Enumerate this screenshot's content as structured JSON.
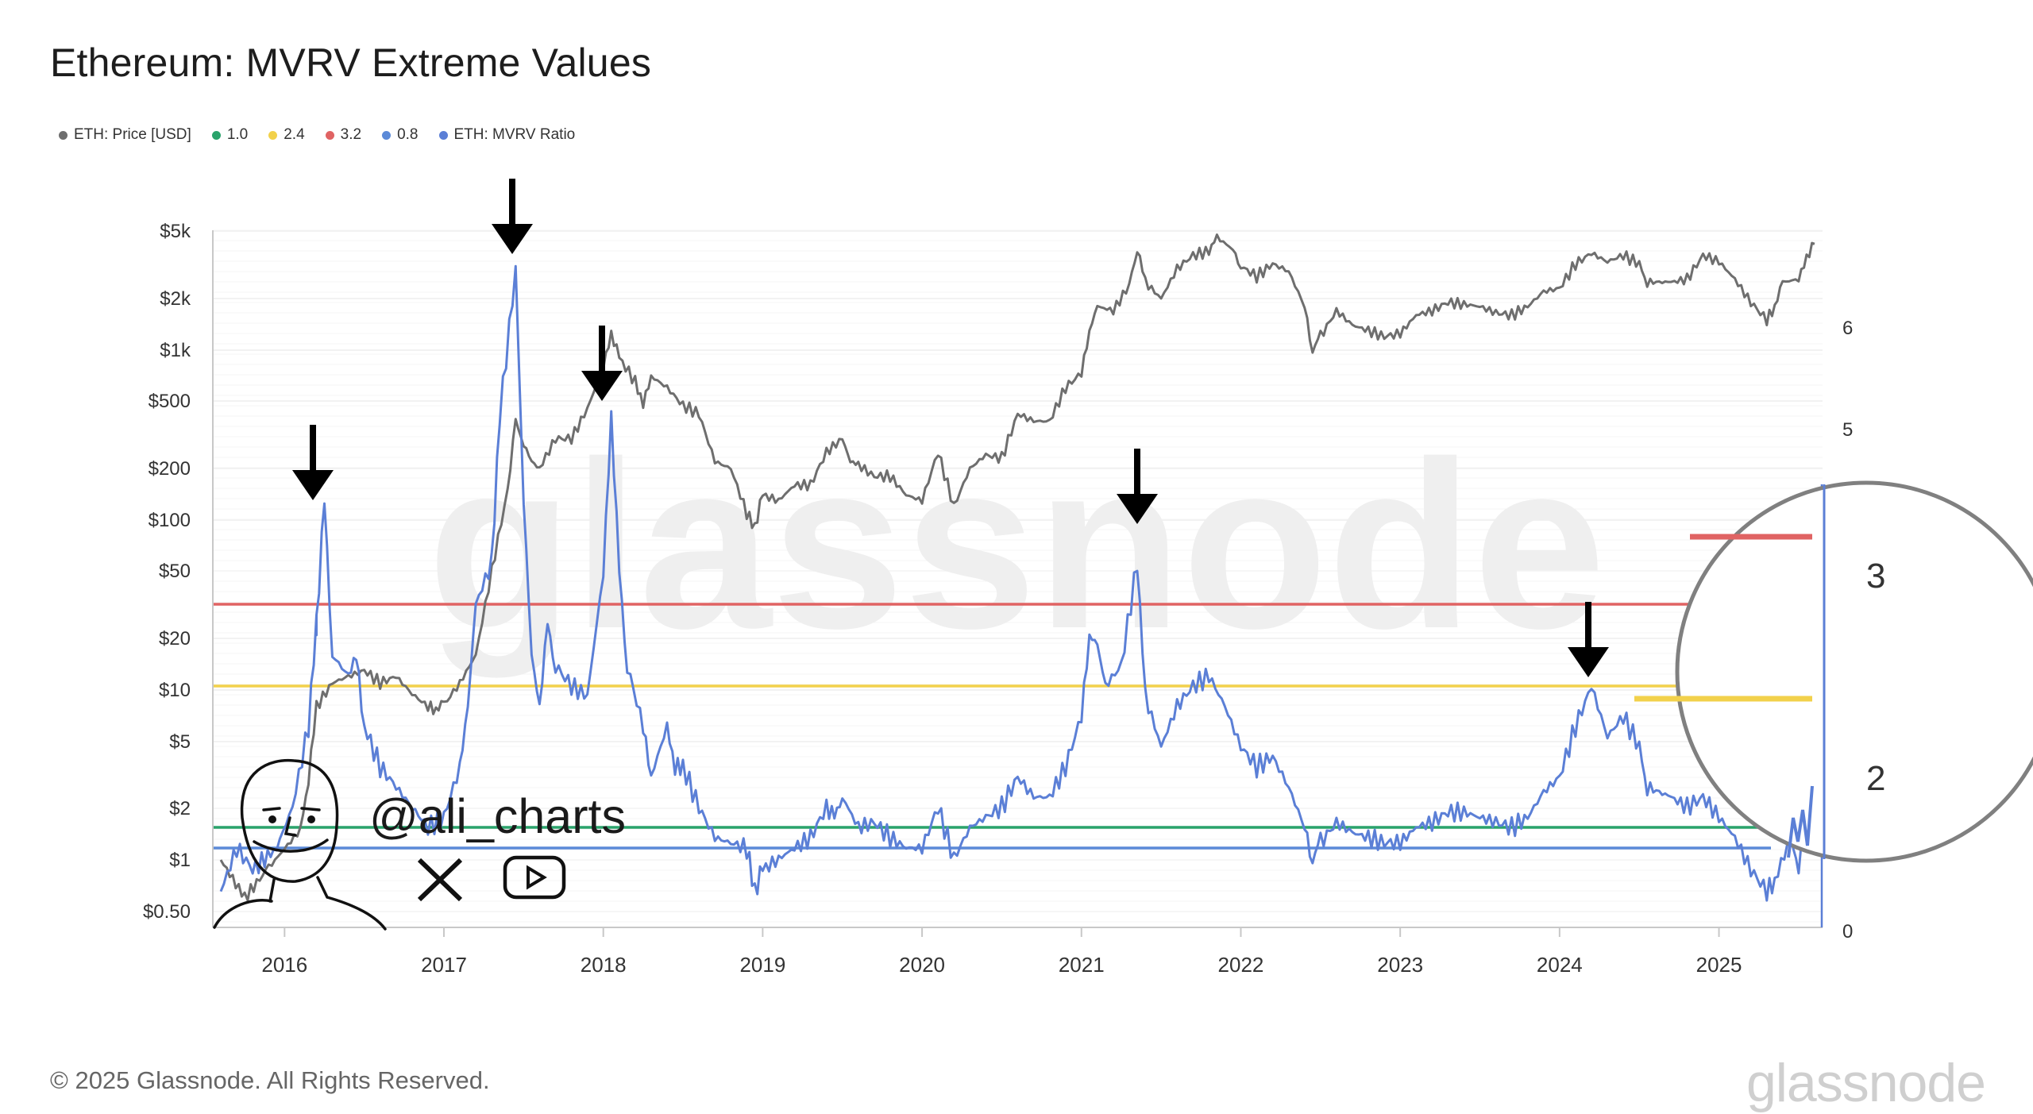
{
  "title": "Ethereum: MVRV Extreme Values",
  "legend": [
    {
      "label": "ETH: Price [USD]",
      "color": "#6e6e6e"
    },
    {
      "label": "1.0",
      "color": "#2aa36b"
    },
    {
      "label": "2.4",
      "color": "#f2d14b"
    },
    {
      "label": "3.2",
      "color": "#e06363"
    },
    {
      "label": "0.8",
      "color": "#5b8ad8"
    },
    {
      "label": "ETH: MVRV Ratio",
      "color": "#5b7fd6"
    }
  ],
  "copyright": "© 2025 Glassnode. All Rights Reserved.",
  "brand": "glassnode",
  "watermark": "glassnode",
  "handle": "@ali_charts",
  "social_icons": [
    "x-icon",
    "youtube-icon"
  ],
  "chart_data": {
    "type": "line",
    "title": "Ethereum: MVRV Extreme Values",
    "y_left_scale": "log",
    "y_left_ticks": [
      "$0.50",
      "$1",
      "$2",
      "$5",
      "$10",
      "$20",
      "$50",
      "$100",
      "$200",
      "$500",
      "$1k",
      "$2k",
      "$5k"
    ],
    "y_right_ticks": [
      "0",
      "5",
      "6"
    ],
    "x_ticks": [
      "2016",
      "2017",
      "2018",
      "2019",
      "2020",
      "2021",
      "2022",
      "2023",
      "2024",
      "2025"
    ],
    "thresholds": [
      {
        "name": "3.2",
        "value": 3.2,
        "color": "#e06363"
      },
      {
        "name": "2.4",
        "value": 2.4,
        "color": "#f2d14b"
      },
      {
        "name": "1.0",
        "value": 1.0,
        "color": "#2aa36b"
      },
      {
        "name": "0.8",
        "value": 0.8,
        "color": "#5b8ad8"
      }
    ],
    "series": [
      {
        "name": "ETH: Price [USD]",
        "color": "#6e6e6e",
        "points": [
          [
            2015.6,
            1.0
          ],
          [
            2015.75,
            0.6
          ],
          [
            2015.9,
            0.9
          ],
          [
            2016.1,
            1.5
          ],
          [
            2016.15,
            3
          ],
          [
            2016.2,
            8
          ],
          [
            2016.3,
            11
          ],
          [
            2016.4,
            12
          ],
          [
            2016.5,
            13
          ],
          [
            2016.6,
            11
          ],
          [
            2016.7,
            12
          ],
          [
            2016.8,
            9.5
          ],
          [
            2016.9,
            8
          ],
          [
            2016.95,
            7.8
          ],
          [
            2017.0,
            8.2
          ],
          [
            2017.1,
            11
          ],
          [
            2017.2,
            16
          ],
          [
            2017.3,
            50
          ],
          [
            2017.4,
            150
          ],
          [
            2017.45,
            380
          ],
          [
            2017.5,
            280
          ],
          [
            2017.55,
            220
          ],
          [
            2017.6,
            200
          ],
          [
            2017.7,
            300
          ],
          [
            2017.8,
            300
          ],
          [
            2017.9,
            450
          ],
          [
            2018.0,
            800
          ],
          [
            2018.05,
            1250
          ],
          [
            2018.1,
            900
          ],
          [
            2018.2,
            650
          ],
          [
            2018.25,
            480
          ],
          [
            2018.3,
            700
          ],
          [
            2018.4,
            600
          ],
          [
            2018.5,
            470
          ],
          [
            2018.6,
            420
          ],
          [
            2018.7,
            220
          ],
          [
            2018.8,
            200
          ],
          [
            2018.9,
            110
          ],
          [
            2018.95,
            90
          ],
          [
            2019.0,
            140
          ],
          [
            2019.1,
            130
          ],
          [
            2019.2,
            160
          ],
          [
            2019.3,
            160
          ],
          [
            2019.4,
            250
          ],
          [
            2019.5,
            300
          ],
          [
            2019.55,
            220
          ],
          [
            2019.6,
            210
          ],
          [
            2019.7,
            180
          ],
          [
            2019.8,
            180
          ],
          [
            2019.9,
            140
          ],
          [
            2020.0,
            130
          ],
          [
            2020.1,
            250
          ],
          [
            2020.2,
            120
          ],
          [
            2020.3,
            200
          ],
          [
            2020.4,
            240
          ],
          [
            2020.5,
            230
          ],
          [
            2020.6,
            420
          ],
          [
            2020.7,
            380
          ],
          [
            2020.8,
            380
          ],
          [
            2020.9,
            600
          ],
          [
            2021.0,
            730
          ],
          [
            2021.05,
            1300
          ],
          [
            2021.1,
            1800
          ],
          [
            2021.2,
            1700
          ],
          [
            2021.3,
            2400
          ],
          [
            2021.35,
            4000
          ],
          [
            2021.4,
            2500
          ],
          [
            2021.5,
            2000
          ],
          [
            2021.6,
            3000
          ],
          [
            2021.7,
            3600
          ],
          [
            2021.8,
            3800
          ],
          [
            2021.85,
            4600
          ],
          [
            2021.95,
            3900
          ],
          [
            2022.0,
            3100
          ],
          [
            2022.1,
            2700
          ],
          [
            2022.2,
            3200
          ],
          [
            2022.3,
            2900
          ],
          [
            2022.4,
            1800
          ],
          [
            2022.45,
            1000
          ],
          [
            2022.5,
            1200
          ],
          [
            2022.6,
            1700
          ],
          [
            2022.7,
            1400
          ],
          [
            2022.8,
            1300
          ],
          [
            2022.9,
            1200
          ],
          [
            2023.0,
            1250
          ],
          [
            2023.1,
            1600
          ],
          [
            2023.2,
            1700
          ],
          [
            2023.3,
            1900
          ],
          [
            2023.4,
            1850
          ],
          [
            2023.5,
            1800
          ],
          [
            2023.6,
            1650
          ],
          [
            2023.7,
            1600
          ],
          [
            2023.8,
            1800
          ],
          [
            2023.9,
            2200
          ],
          [
            2024.0,
            2300
          ],
          [
            2024.1,
            3200
          ],
          [
            2024.2,
            3700
          ],
          [
            2024.3,
            3300
          ],
          [
            2024.4,
            3600
          ],
          [
            2024.5,
            3200
          ],
          [
            2024.55,
            2500
          ],
          [
            2024.7,
            2500
          ],
          [
            2024.8,
            2600
          ],
          [
            2024.9,
            3600
          ],
          [
            2025.0,
            3300
          ],
          [
            2025.1,
            2600
          ],
          [
            2025.2,
            1900
          ],
          [
            2025.3,
            1500
          ],
          [
            2025.35,
            1800
          ],
          [
            2025.4,
            2500
          ],
          [
            2025.5,
            2600
          ],
          [
            2025.55,
            3500
          ],
          [
            2025.6,
            4200
          ]
        ]
      },
      {
        "name": "ETH: MVRV Ratio",
        "color": "#5b7fd6",
        "points": [
          [
            2015.6,
            0.6
          ],
          [
            2015.7,
            0.8
          ],
          [
            2015.8,
            0.7
          ],
          [
            2015.95,
            0.8
          ],
          [
            2016.05,
            1.2
          ],
          [
            2016.15,
            2.0
          ],
          [
            2016.2,
            3.0
          ],
          [
            2016.2,
            3.0
          ],
          [
            2016.25,
            4.2
          ],
          [
            2016.3,
            2.7
          ],
          [
            2016.4,
            2.5
          ],
          [
            2016.45,
            2.7
          ],
          [
            2016.5,
            2.0
          ],
          [
            2016.6,
            1.6
          ],
          [
            2016.7,
            1.4
          ],
          [
            2016.8,
            1.2
          ],
          [
            2016.9,
            1.0
          ],
          [
            2017.0,
            1.1
          ],
          [
            2017.1,
            1.6
          ],
          [
            2017.15,
            2.2
          ],
          [
            2017.2,
            3.2
          ],
          [
            2017.3,
            3.6
          ],
          [
            2017.35,
            5.0
          ],
          [
            2017.45,
            6.4
          ],
          [
            2017.5,
            4.2
          ],
          [
            2017.55,
            2.7
          ],
          [
            2017.6,
            2.2
          ],
          [
            2017.65,
            3.0
          ],
          [
            2017.7,
            2.6
          ],
          [
            2017.8,
            2.4
          ],
          [
            2017.9,
            2.3
          ],
          [
            2018.0,
            3.5
          ],
          [
            2018.05,
            5.0
          ],
          [
            2018.1,
            3.5
          ],
          [
            2018.15,
            2.6
          ],
          [
            2018.25,
            2.0
          ],
          [
            2018.3,
            1.5
          ],
          [
            2018.4,
            2.0
          ],
          [
            2018.45,
            1.6
          ],
          [
            2018.5,
            1.6
          ],
          [
            2018.6,
            1.2
          ],
          [
            2018.7,
            0.9
          ],
          [
            2018.8,
            0.85
          ],
          [
            2018.9,
            0.8
          ],
          [
            2018.95,
            0.6
          ],
          [
            2019.0,
            0.7
          ],
          [
            2019.1,
            0.75
          ],
          [
            2019.2,
            0.8
          ],
          [
            2019.3,
            0.9
          ],
          [
            2019.4,
            1.2
          ],
          [
            2019.45,
            1.1
          ],
          [
            2019.5,
            1.3
          ],
          [
            2019.6,
            1.0
          ],
          [
            2019.7,
            1.05
          ],
          [
            2019.8,
            0.9
          ],
          [
            2019.9,
            0.8
          ],
          [
            2020.0,
            0.8
          ],
          [
            2020.1,
            1.2
          ],
          [
            2020.2,
            0.75
          ],
          [
            2020.3,
            1.0
          ],
          [
            2020.4,
            1.1
          ],
          [
            2020.5,
            1.2
          ],
          [
            2020.6,
            1.5
          ],
          [
            2020.7,
            1.3
          ],
          [
            2020.8,
            1.3
          ],
          [
            2020.9,
            1.6
          ],
          [
            2021.0,
            2.1
          ],
          [
            2021.05,
            2.9
          ],
          [
            2021.1,
            2.8
          ],
          [
            2021.15,
            2.4
          ],
          [
            2021.25,
            2.6
          ],
          [
            2021.35,
            3.6
          ],
          [
            2021.4,
            2.3
          ],
          [
            2021.5,
            1.8
          ],
          [
            2021.6,
            2.2
          ],
          [
            2021.7,
            2.4
          ],
          [
            2021.8,
            2.5
          ],
          [
            2021.9,
            2.2
          ],
          [
            2022.0,
            1.8
          ],
          [
            2022.1,
            1.6
          ],
          [
            2022.2,
            1.7
          ],
          [
            2022.3,
            1.4
          ],
          [
            2022.4,
            1.0
          ],
          [
            2022.45,
            0.75
          ],
          [
            2022.5,
            0.85
          ],
          [
            2022.6,
            1.05
          ],
          [
            2022.7,
            0.95
          ],
          [
            2022.8,
            0.9
          ],
          [
            2022.9,
            0.85
          ],
          [
            2023.0,
            0.85
          ],
          [
            2023.1,
            1.0
          ],
          [
            2023.2,
            1.05
          ],
          [
            2023.3,
            1.15
          ],
          [
            2023.4,
            1.15
          ],
          [
            2023.5,
            1.1
          ],
          [
            2023.6,
            1.05
          ],
          [
            2023.7,
            1.0
          ],
          [
            2023.8,
            1.1
          ],
          [
            2023.9,
            1.35
          ],
          [
            2024.0,
            1.5
          ],
          [
            2024.1,
            2.0
          ],
          [
            2024.2,
            2.4
          ],
          [
            2024.3,
            1.9
          ],
          [
            2024.4,
            2.1
          ],
          [
            2024.5,
            1.8
          ],
          [
            2024.55,
            1.4
          ],
          [
            2024.7,
            1.3
          ],
          [
            2024.8,
            1.2
          ],
          [
            2024.9,
            1.3
          ],
          [
            2025.0,
            1.1
          ],
          [
            2025.1,
            0.9
          ],
          [
            2025.2,
            0.7
          ],
          [
            2025.3,
            0.6
          ],
          [
            2025.35,
            0.65
          ],
          [
            2025.45,
            0.9
          ],
          [
            2025.5,
            0.7
          ],
          [
            2025.55,
            1.2
          ],
          [
            2025.6,
            1.6
          ]
        ]
      }
    ],
    "zoom_inset": {
      "ticks": [
        "3",
        "2"
      ],
      "lines": [
        {
          "name": "3.2",
          "color": "#e06363"
        },
        {
          "name": "2.4",
          "color": "#f2d14b"
        }
      ]
    },
    "annotations": [
      "arrow-2016",
      "arrow-2017",
      "arrow-2018",
      "arrow-2021",
      "arrow-2024"
    ]
  }
}
